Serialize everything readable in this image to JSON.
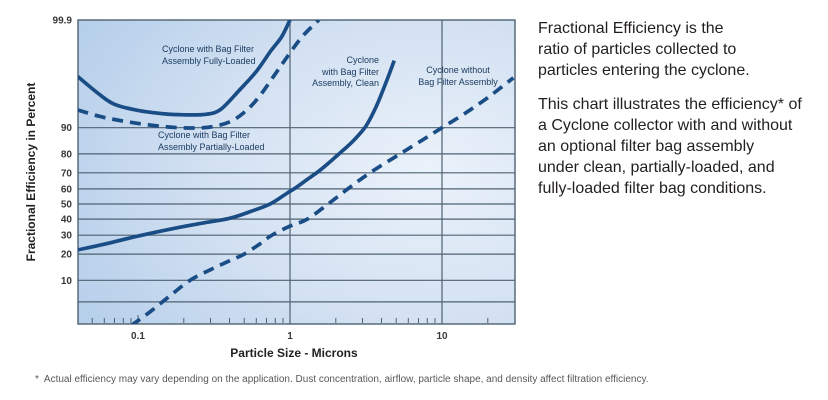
{
  "description": {
    "paragraph1": "Fractional Efficiency is the\nratio of particles collected to\nparticles entering the cyclone.",
    "paragraph2": "This chart illustrates the efficiency* of\na Cyclone collector with and without\nan optional filter bag assembly\nunder clean, partially-loaded, and\nfully-loaded filter bag conditions."
  },
  "footnote": "*  Actual efficiency may vary depending on the application. Dust concentration, airflow, particle shape, and density affect filtration efficiency.",
  "chart_data": {
    "type": "line",
    "title": "",
    "xlabel": "Particle Size - Microns",
    "ylabel": "Fractional Efficiency in Percent",
    "x_scale": "log",
    "y_scale": "probability",
    "x_range": [
      0.04,
      30
    ],
    "y_range": [
      2,
      99.9
    ],
    "x_ticks": [
      0.1,
      1,
      10
    ],
    "x_gridlines": [
      1,
      10
    ],
    "y_ticks": [
      99.9,
      90,
      80,
      70,
      60,
      50,
      40,
      30,
      20,
      10
    ],
    "y_gridlines_unlabeled": [
      5
    ],
    "grid": true,
    "legend_position": "inline-labels",
    "colors": {
      "line": "#1a4d85",
      "grid": "#4f6272",
      "border": "#4f6272",
      "tick_label": "#37383a",
      "series_label": "#1d3c61",
      "plot_bg_center": "#ebf2fa",
      "plot_bg_mid": "#d3e1f2",
      "plot_bg_edge": "#aac8e7"
    },
    "series": [
      {
        "name": "fully_loaded",
        "label": "Cyclone with Bag Filter\nAssembly Fully-Loaded",
        "line_style": "solid",
        "points": [
          [
            0.04,
            98.4
          ],
          [
            0.055,
            96.8
          ],
          [
            0.07,
            95.3
          ],
          [
            0.1,
            94.2
          ],
          [
            0.15,
            93.5
          ],
          [
            0.2,
            93.3
          ],
          [
            0.28,
            93.4
          ],
          [
            0.35,
            94.4
          ],
          [
            0.47,
            97.3
          ],
          [
            0.6,
            98.7
          ],
          [
            0.75,
            99.5
          ],
          [
            0.88,
            99.75
          ],
          [
            1.0,
            99.9
          ]
        ]
      },
      {
        "name": "partially_loaded",
        "label": "Cyclone with Bag Filter\nAssembly Partially-Loaded",
        "line_style": "dashed",
        "points": [
          [
            0.04,
            94.3
          ],
          [
            0.055,
            93.0
          ],
          [
            0.07,
            92.2
          ],
          [
            0.1,
            91.2
          ],
          [
            0.15,
            90.3
          ],
          [
            0.22,
            89.9
          ],
          [
            0.3,
            90.2
          ],
          [
            0.4,
            91.6
          ],
          [
            0.5,
            93.8
          ],
          [
            0.62,
            96.3
          ],
          [
            0.78,
            98.4
          ],
          [
            0.95,
            99.3
          ],
          [
            1.2,
            99.75
          ],
          [
            1.55,
            99.9
          ]
        ]
      },
      {
        "name": "clean",
        "label": "Cyclone\nwith Bag Filter\nAssembly, Clean",
        "line_style": "solid",
        "points": [
          [
            0.04,
            22
          ],
          [
            0.06,
            25
          ],
          [
            0.1,
            29.5
          ],
          [
            0.16,
            33.5
          ],
          [
            0.25,
            37
          ],
          [
            0.4,
            40.5
          ],
          [
            0.55,
            45
          ],
          [
            0.74,
            50
          ],
          [
            0.95,
            57
          ],
          [
            1.1,
            61
          ],
          [
            1.3,
            66
          ],
          [
            1.55,
            71
          ],
          [
            1.8,
            75.5
          ],
          [
            2.1,
            80
          ],
          [
            2.6,
            85.5
          ],
          [
            3.16,
            90.5
          ],
          [
            3.7,
            95
          ],
          [
            4.3,
            98
          ],
          [
            4.85,
            99.2
          ]
        ]
      },
      {
        "name": "without_bag_filter",
        "label": "Cyclone without\nBag Filter Assembly",
        "line_style": "dashed",
        "points": [
          [
            0.09,
            2.05
          ],
          [
            0.12,
            3.5
          ],
          [
            0.16,
            6
          ],
          [
            0.22,
            10
          ],
          [
            0.3,
            13.5
          ],
          [
            0.4,
            17
          ],
          [
            0.5,
            20
          ],
          [
            0.63,
            25
          ],
          [
            0.76,
            30
          ],
          [
            1.0,
            35.5
          ],
          [
            1.3,
            40
          ],
          [
            1.78,
            50
          ],
          [
            2.4,
            60
          ],
          [
            3.36,
            70
          ],
          [
            5.3,
            80
          ],
          [
            7.5,
            86
          ],
          [
            10,
            90
          ],
          [
            14,
            93.5
          ],
          [
            20,
            96.3
          ],
          [
            29.5,
            98.3
          ]
        ]
      }
    ]
  }
}
